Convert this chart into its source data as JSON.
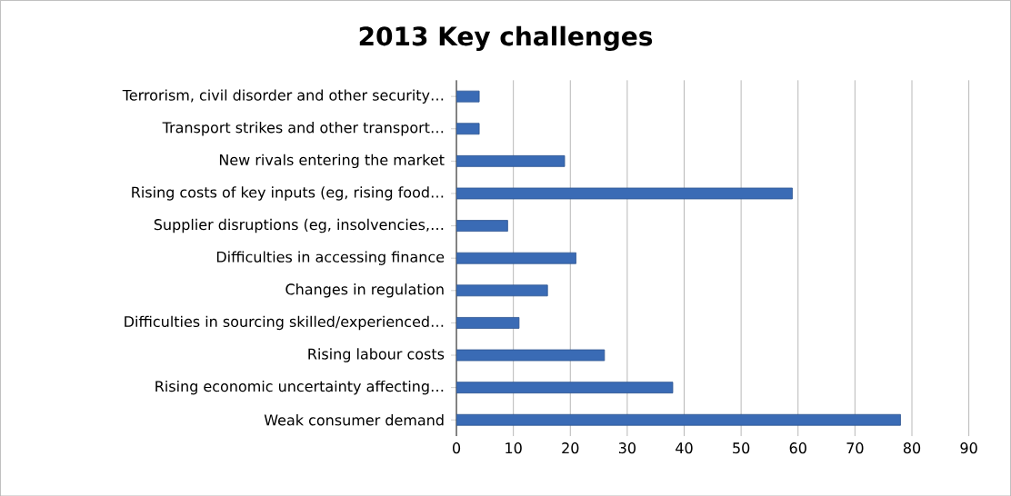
{
  "chart_data": {
    "type": "bar",
    "orientation": "horizontal",
    "title": "2013 Key challenges",
    "categories": [
      "Terrorism, civil disorder and other security…",
      "Transport strikes and other transport…",
      "New rivals entering the market",
      "Rising costs of key inputs (eg, rising food…",
      "Supplier disruptions (eg, insolvencies,…",
      "Difficulties in accessing finance",
      "Changes in regulation",
      "Difficulties in sourcing skilled/experienced…",
      "Rising labour costs",
      "Rising economic uncertainty affecting…",
      "Weak consumer demand"
    ],
    "values": [
      4,
      4,
      19,
      59,
      9,
      21,
      16,
      11,
      26,
      38,
      78
    ],
    "color": "#3a6bb5",
    "xlim": [
      0,
      90
    ],
    "xticks": [
      0,
      10,
      20,
      30,
      40,
      50,
      60,
      70,
      80,
      90
    ],
    "grid": "x"
  }
}
